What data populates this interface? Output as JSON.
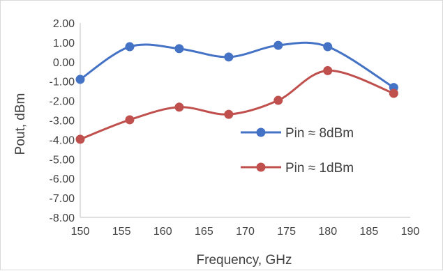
{
  "chart_data": {
    "type": "line",
    "xlabel": "Frequency, GHz",
    "ylabel": "Pout, dBm",
    "xlim": [
      150,
      190
    ],
    "ylim": [
      -8,
      2
    ],
    "xticks": [
      "150",
      "155",
      "160",
      "165",
      "170",
      "175",
      "180",
      "185",
      "190"
    ],
    "yticks": [
      "2.00",
      "1.00",
      "0.00",
      "-1.00",
      "-2.00",
      "-3.00",
      "-4.00",
      "-5.00",
      "-6.00",
      "-7.00",
      "-8.00"
    ],
    "grid": false,
    "legend_position": "center-right",
    "smooth": true,
    "series": [
      {
        "name": "Pin ≈ 8dBm",
        "color": "#4472c4",
        "x": [
          150,
          156,
          162,
          168,
          174,
          180,
          188
        ],
        "y": [
          -0.9,
          0.78,
          0.68,
          0.25,
          0.85,
          0.78,
          -1.32
        ]
      },
      {
        "name": "Pin ≈ 1dBm",
        "color": "#c0504d",
        "x": [
          150,
          156,
          162,
          168,
          174,
          180,
          188
        ],
        "y": [
          -3.98,
          -2.98,
          -2.33,
          -2.7,
          -1.98,
          -0.45,
          -1.62
        ]
      }
    ]
  }
}
